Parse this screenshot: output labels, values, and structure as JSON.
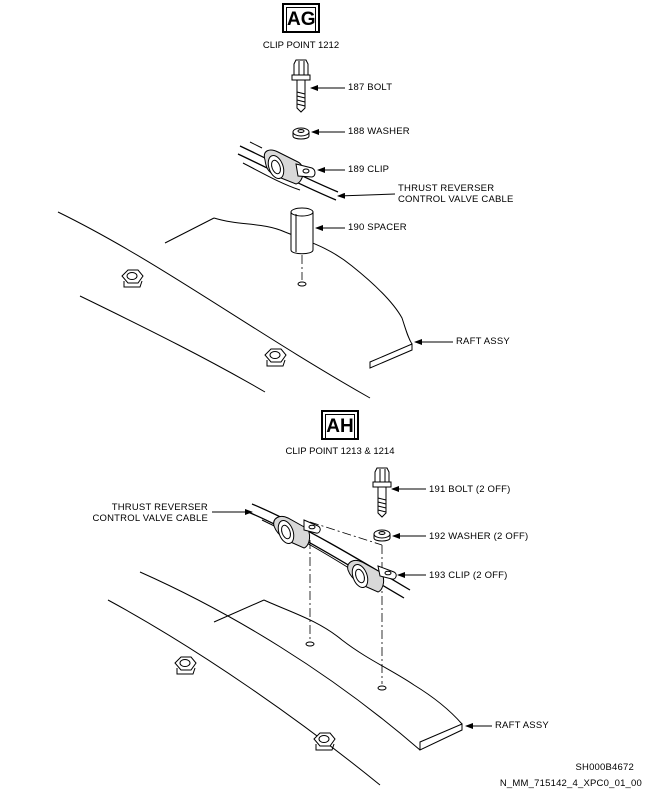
{
  "view_ag": {
    "tag": "AG",
    "caption": "CLIP POINT 1212",
    "callouts": {
      "bolt": "187 BOLT",
      "washer": "188 WASHER",
      "clip": "189 CLIP",
      "cable_line1": "THRUST REVERSER",
      "cable_line2": "CONTROL VALVE CABLE",
      "spacer": "190 SPACER",
      "raft": "RAFT ASSY"
    }
  },
  "view_ah": {
    "tag": "AH",
    "caption": "CLIP POINT 1213 & 1214",
    "callouts": {
      "cable_line1": "THRUST REVERSER",
      "cable_line2": "CONTROL VALVE CABLE",
      "bolt": "191 BOLT (2 OFF)",
      "washer": "192 WASHER (2 OFF)",
      "clip": "193 CLIP (2 OFF)",
      "raft": "RAFT ASSY"
    }
  },
  "footer": {
    "sheet_id": "SH000B4672",
    "figure_ref": "N_MM_715142_4_XPC0_01_00"
  }
}
